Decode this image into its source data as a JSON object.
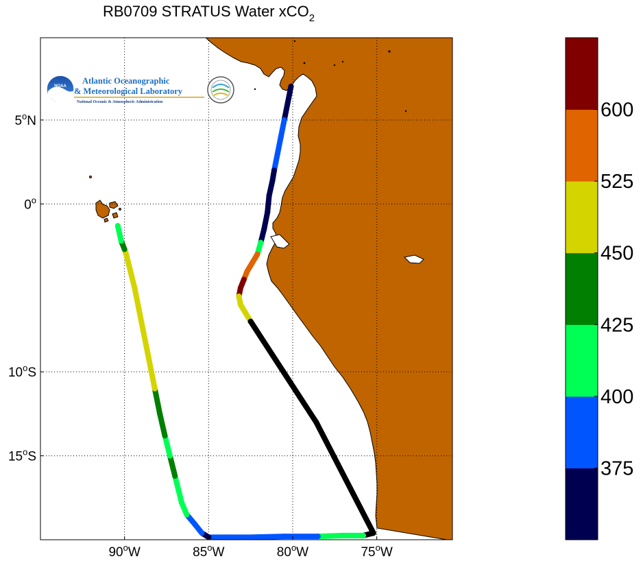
{
  "title_main": "RB0709 STRATUS Water xCO",
  "title_sub": "2",
  "logo": {
    "line1": "Atlantic Oceanographic",
    "line2": "& Meteorological Laboratory",
    "line3": "National Oceanic & Atmospheric Administration",
    "badge": "NOAA"
  },
  "colors": {
    "land": "#c06400",
    "track_black": "#000000"
  },
  "chart_data": {
    "type": "map",
    "title": "RB0709 STRATUS Water xCO2",
    "xlim": [
      -95,
      -70.5
    ],
    "ylim": [
      -20,
      9.9
    ],
    "grid": true,
    "x_ticks": [
      {
        "value": -90,
        "label": "90",
        "deg": "o",
        "hem": "W"
      },
      {
        "value": -85,
        "label": "85",
        "deg": "o",
        "hem": "W"
      },
      {
        "value": -80,
        "label": "80",
        "deg": "o",
        "hem": "W"
      },
      {
        "value": -75,
        "label": "75",
        "deg": "o",
        "hem": "W"
      }
    ],
    "y_ticks": [
      {
        "value": 5,
        "label": "5",
        "deg": "o",
        "hem": "N"
      },
      {
        "value": 0,
        "label": "0",
        "deg": "o",
        "hem": ""
      },
      {
        "value": -10,
        "label": "10",
        "deg": "o",
        "hem": "S"
      },
      {
        "value": -15,
        "label": "15",
        "deg": "o",
        "hem": "S"
      }
    ],
    "colorbar": {
      "labels": [
        "375",
        "400",
        "425",
        "450",
        "525",
        "600"
      ],
      "bins": [
        {
          "color": "#000050"
        },
        {
          "color": "#0055ff"
        },
        {
          "color": "#00ff55"
        },
        {
          "color": "#007f00"
        },
        {
          "color": "#d4d400"
        },
        {
          "color": "#e06400"
        },
        {
          "color": "#800000"
        }
      ]
    },
    "cruise_track": [
      {
        "lon": -80.1,
        "lat": 7.0,
        "bin": 0
      },
      {
        "lon": -80.3,
        "lat": 6.0,
        "bin": 0
      },
      {
        "lon": -80.5,
        "lat": 5.0,
        "bin": 1
      },
      {
        "lon": -80.7,
        "lat": 4.0,
        "bin": 1
      },
      {
        "lon": -80.9,
        "lat": 3.0,
        "bin": 1
      },
      {
        "lon": -81.0,
        "lat": 2.5,
        "bin": 1
      },
      {
        "lon": -81.1,
        "lat": 2.0,
        "bin": 0
      },
      {
        "lon": -81.2,
        "lat": 1.4,
        "bin": 0
      },
      {
        "lon": -81.4,
        "lat": 0.5,
        "bin": 0
      },
      {
        "lon": -81.5,
        "lat": -0.5,
        "bin": 0
      },
      {
        "lon": -81.7,
        "lat": -1.5,
        "bin": 0
      },
      {
        "lon": -81.9,
        "lat": -2.3,
        "bin": 2
      },
      {
        "lon": -82.1,
        "lat": -3.0,
        "bin": 5
      },
      {
        "lon": -82.4,
        "lat": -3.5,
        "bin": 5
      },
      {
        "lon": -82.7,
        "lat": -4.0,
        "bin": 5
      },
      {
        "lon": -82.9,
        "lat": -4.5,
        "bin": 6
      },
      {
        "lon": -83.1,
        "lat": -5.0,
        "bin": 6
      },
      {
        "lon": -83.2,
        "lat": -5.5,
        "bin": 4
      },
      {
        "lon": -83.1,
        "lat": -6.0,
        "bin": 4
      },
      {
        "lon": -82.8,
        "lat": -6.5,
        "bin": 4
      },
      {
        "lon": -82.5,
        "lat": -7.0,
        "bin": -1
      },
      {
        "lon": -78.6,
        "lat": -13.0,
        "bin": -1
      },
      {
        "lon": -75.2,
        "lat": -19.6,
        "bin": -1
      },
      {
        "lon": -75.8,
        "lat": -19.75,
        "bin": 2
      },
      {
        "lon": -77.0,
        "lat": -19.75,
        "bin": 2
      },
      {
        "lon": -78.5,
        "lat": -19.8,
        "bin": 1
      },
      {
        "lon": -80.5,
        "lat": -19.8,
        "bin": 1
      },
      {
        "lon": -82.5,
        "lat": -19.85,
        "bin": 1
      },
      {
        "lon": -84.0,
        "lat": -19.85,
        "bin": 1
      },
      {
        "lon": -85.0,
        "lat": -19.85,
        "bin": 0
      },
      {
        "lon": -85.4,
        "lat": -19.6,
        "bin": 1
      },
      {
        "lon": -85.8,
        "lat": -19.1,
        "bin": 1
      },
      {
        "lon": -86.3,
        "lat": -18.5,
        "bin": 2
      },
      {
        "lon": -86.6,
        "lat": -17.8,
        "bin": 2
      },
      {
        "lon": -86.8,
        "lat": -17.0,
        "bin": 2
      },
      {
        "lon": -87.0,
        "lat": -16.2,
        "bin": 3
      },
      {
        "lon": -87.3,
        "lat": -15.0,
        "bin": 2
      },
      {
        "lon": -87.6,
        "lat": -13.8,
        "bin": 3
      },
      {
        "lon": -87.9,
        "lat": -12.5,
        "bin": 3
      },
      {
        "lon": -88.2,
        "lat": -11.0,
        "bin": 4
      },
      {
        "lon": -88.6,
        "lat": -9.0,
        "bin": 4
      },
      {
        "lon": -89.0,
        "lat": -7.0,
        "bin": 4
      },
      {
        "lon": -89.4,
        "lat": -5.0,
        "bin": 4
      },
      {
        "lon": -89.9,
        "lat": -3.0,
        "bin": 4
      },
      {
        "lon": -90.0,
        "lat": -2.7,
        "bin": 3
      },
      {
        "lon": -90.2,
        "lat": -2.2,
        "bin": 2
      },
      {
        "lon": -90.4,
        "lat": -1.3,
        "bin": 2
      }
    ]
  }
}
